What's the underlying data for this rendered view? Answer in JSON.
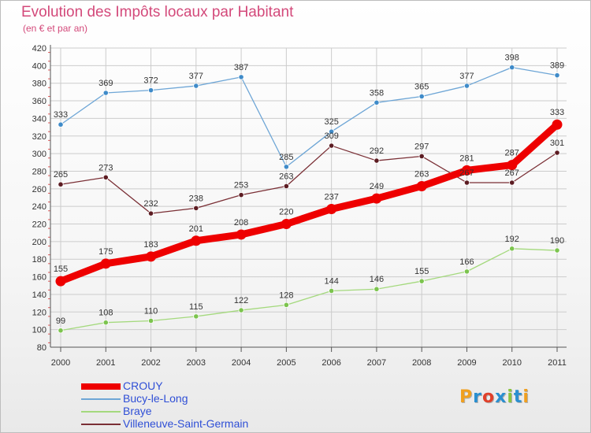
{
  "header": {
    "title": "Evolution des Impôts locaux par Habitant",
    "subtitle": "(en € et par an)"
  },
  "logo": {
    "text": "Proxiti",
    "colors": [
      "#f0a020",
      "#2a8fd0",
      "#e0402a",
      "#2a8fd0",
      "#8bc43f",
      "#2a8fd0",
      "#f0a020"
    ]
  },
  "chart_data": {
    "type": "line",
    "title": "Evolution des Impôts locaux par Habitant",
    "subtitle": "(en € et par an)",
    "xlabel": "",
    "ylabel": "",
    "x": [
      "2000",
      "2001",
      "2002",
      "2003",
      "2004",
      "2005",
      "2006",
      "2007",
      "2008",
      "2009",
      "2010",
      "2011"
    ],
    "ylim": [
      80,
      420
    ],
    "yticks": [
      80,
      100,
      120,
      140,
      160,
      180,
      200,
      220,
      240,
      260,
      280,
      300,
      320,
      340,
      360,
      380,
      400,
      420
    ],
    "grid": true,
    "legend_position": "bottom-left",
    "series": [
      {
        "name": "Bucy-le-Long",
        "color": "#6ea6d6",
        "marker": "#3f8bc9",
        "values": [
          333,
          369,
          372,
          377,
          387,
          285,
          325,
          358,
          365,
          377,
          398,
          389
        ]
      },
      {
        "name": "Villeneuve-Saint-Germain",
        "color": "#7a2f35",
        "marker": "#5c1c22",
        "values": [
          265,
          273,
          232,
          238,
          253,
          263,
          309,
          292,
          297,
          267,
          267,
          301
        ]
      },
      {
        "name": "Braye",
        "color": "#a4d97d",
        "marker": "#7cc44e",
        "values": [
          99,
          108,
          110,
          115,
          122,
          128,
          144,
          146,
          155,
          166,
          192,
          190
        ]
      },
      {
        "name": "CROUY",
        "color": "#ee0000",
        "marker": "#ee0000",
        "values": [
          155,
          175,
          183,
          201,
          208,
          220,
          237,
          249,
          263,
          281,
          287,
          333
        ]
      }
    ]
  }
}
